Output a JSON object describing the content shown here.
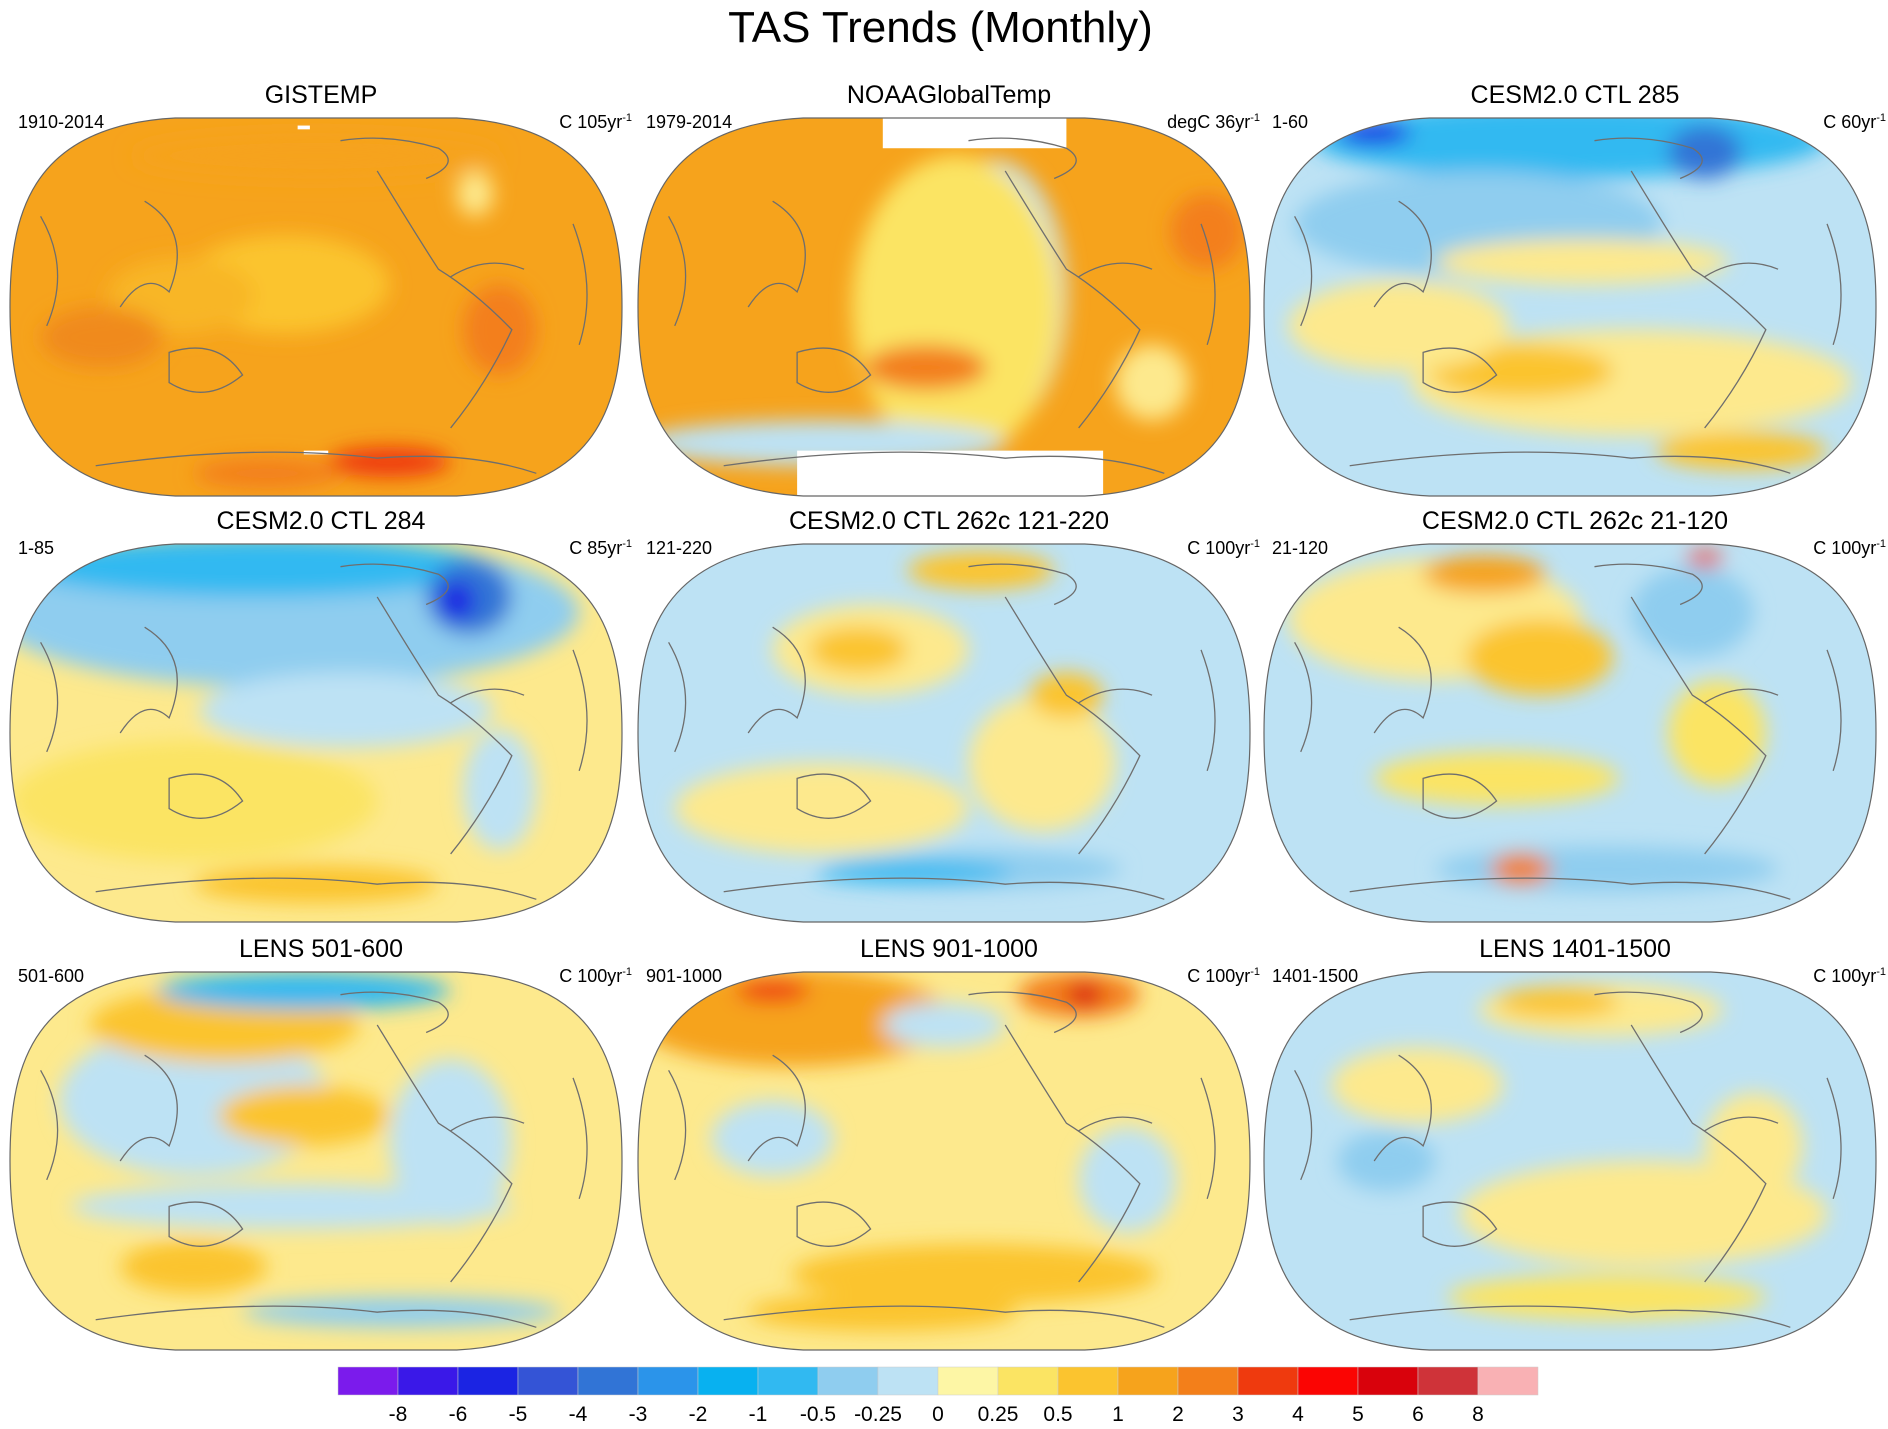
{
  "title": "TAS Trends (Monthly)",
  "panels": [
    {
      "title": "GISTEMP",
      "period": "1910-2014",
      "units_prefix": "C 105yr",
      "units_exp": "-1",
      "base": "#f6a31c",
      "blobs": [
        [
          "#fbc42f",
          0.45,
          0.44,
          0.17,
          0.13
        ],
        [
          "#f8b625",
          0.28,
          0.47,
          0.12,
          0.1
        ],
        [
          "#f37f1a",
          0.8,
          0.56,
          0.06,
          0.12
        ],
        [
          "#f6a31c",
          0.5,
          0.1,
          0.3,
          0.06
        ],
        [
          "#fde98d",
          0.76,
          0.2,
          0.03,
          0.06
        ],
        [
          "#ef3a0e",
          0.62,
          0.91,
          0.1,
          0.04
        ],
        [
          "#f37f1a",
          0.42,
          0.94,
          0.12,
          0.04
        ],
        [
          "#f08a1c",
          0.15,
          0.58,
          0.1,
          0.08
        ]
      ],
      "gaps": [
        [
          0.47,
          0.02,
          0.02,
          0.01
        ],
        [
          0.48,
          0.88,
          0.04,
          0.01
        ]
      ]
    },
    {
      "title": "NOAAGlobalTemp",
      "period": "1979-2014",
      "units_prefix": "degC 36yr",
      "units_exp": "-1",
      "base": "#f6a31c",
      "blobs": [
        [
          "#bde2f4",
          0.58,
          0.47,
          0.12,
          0.36
        ],
        [
          "#8fcdef",
          0.56,
          0.45,
          0.06,
          0.2
        ],
        [
          "#fbe463",
          0.52,
          0.5,
          0.17,
          0.4
        ],
        [
          "#bde2f4",
          0.3,
          0.86,
          0.3,
          0.06
        ],
        [
          "#fde98d",
          0.84,
          0.7,
          0.06,
          0.1
        ],
        [
          "#f37f1a",
          0.93,
          0.3,
          0.06,
          0.1
        ],
        [
          "#f37f1a",
          0.47,
          0.66,
          0.1,
          0.06
        ]
      ],
      "gaps": [
        [
          0.4,
          0.0,
          0.3,
          0.08
        ],
        [
          0.26,
          0.88,
          0.5,
          0.12
        ]
      ]
    },
    {
      "title": "CESM2.0 CTL 285",
      "period": "1-60",
      "units_prefix": "C 60yr",
      "units_exp": "-1",
      "base": "#bde2f4",
      "blobs": [
        [
          "#31b9f1",
          0.5,
          0.06,
          0.42,
          0.1
        ],
        [
          "#8fcdef",
          0.35,
          0.28,
          0.3,
          0.14
        ],
        [
          "#fde98d",
          0.52,
          0.38,
          0.24,
          0.06
        ],
        [
          "#fde98d",
          0.6,
          0.7,
          0.36,
          0.14
        ],
        [
          "#fbc42f",
          0.42,
          0.67,
          0.15,
          0.07
        ],
        [
          "#fbc42f",
          0.78,
          0.88,
          0.14,
          0.05
        ],
        [
          "#3174d6",
          0.72,
          0.09,
          0.06,
          0.07
        ],
        [
          "#1b24e3",
          0.18,
          0.04,
          0.06,
          0.03
        ],
        [
          "#fde98d",
          0.22,
          0.55,
          0.18,
          0.12
        ]
      ],
      "gaps": []
    },
    {
      "title": "CESM2.0 CTL 284",
      "period": "1-85",
      "units_prefix": "C 85yr",
      "units_exp": "-1",
      "base": "#fde98d",
      "blobs": [
        [
          "#8fcdef",
          0.45,
          0.18,
          0.48,
          0.2
        ],
        [
          "#31b9f1",
          0.4,
          0.06,
          0.38,
          0.08
        ],
        [
          "#3174d6",
          0.75,
          0.14,
          0.07,
          0.1
        ],
        [
          "#1b24e3",
          0.73,
          0.15,
          0.03,
          0.05
        ],
        [
          "#bde2f4",
          0.55,
          0.44,
          0.24,
          0.1
        ],
        [
          "#fbe463",
          0.3,
          0.68,
          0.3,
          0.16
        ],
        [
          "#fbc42f",
          0.5,
          0.9,
          0.2,
          0.05
        ],
        [
          "#bde2f4",
          0.8,
          0.65,
          0.06,
          0.16
        ]
      ],
      "gaps": []
    },
    {
      "title": "CESM2.0 CTL 262c 121-220",
      "period": "121-220",
      "units_prefix": "C 100yr",
      "units_exp": "-1",
      "base": "#bde2f4",
      "blobs": [
        [
          "#fde98d",
          0.38,
          0.28,
          0.16,
          0.12
        ],
        [
          "#fbc42f",
          0.36,
          0.28,
          0.08,
          0.06
        ],
        [
          "#fbc42f",
          0.56,
          0.07,
          0.12,
          0.05
        ],
        [
          "#fde98d",
          0.3,
          0.7,
          0.24,
          0.12
        ],
        [
          "#fde98d",
          0.66,
          0.58,
          0.12,
          0.18
        ],
        [
          "#8fcdef",
          0.55,
          0.86,
          0.24,
          0.05
        ],
        [
          "#31b9f1",
          0.45,
          0.87,
          0.16,
          0.03
        ],
        [
          "#fbc42f",
          0.7,
          0.4,
          0.06,
          0.06
        ]
      ],
      "gaps": []
    },
    {
      "title": "CESM2.0 CTL 262c 21-120",
      "period": "21-120",
      "units_prefix": "C 100yr",
      "units_exp": "-1",
      "base": "#bde2f4",
      "blobs": [
        [
          "#fde98d",
          0.28,
          0.2,
          0.24,
          0.16
        ],
        [
          "#fbc42f",
          0.45,
          0.3,
          0.12,
          0.1
        ],
        [
          "#f6a31c",
          0.36,
          0.08,
          0.1,
          0.05
        ],
        [
          "#8fcdef",
          0.7,
          0.18,
          0.1,
          0.12
        ],
        [
          "#fbe463",
          0.38,
          0.62,
          0.2,
          0.07
        ],
        [
          "#8fcdef",
          0.56,
          0.86,
          0.28,
          0.06
        ],
        [
          "#f37f1a",
          0.42,
          0.86,
          0.05,
          0.04
        ],
        [
          "#ef3a0e",
          0.72,
          0.04,
          0.03,
          0.02
        ],
        [
          "#fbe463",
          0.74,
          0.5,
          0.08,
          0.14
        ]
      ],
      "gaps": []
    },
    {
      "title": "LENS 501-600",
      "period": "501-600",
      "units_prefix": "C 100yr",
      "units_exp": "-1",
      "base": "#fde98d",
      "blobs": [
        [
          "#bde2f4",
          0.3,
          0.34,
          0.22,
          0.2
        ],
        [
          "#fbc42f",
          0.35,
          0.14,
          0.22,
          0.1
        ],
        [
          "#31b9f1",
          0.48,
          0.05,
          0.24,
          0.05
        ],
        [
          "#fbc42f",
          0.48,
          0.38,
          0.14,
          0.08
        ],
        [
          "#bde2f4",
          0.72,
          0.45,
          0.1,
          0.22
        ],
        [
          "#bde2f4",
          0.46,
          0.62,
          0.36,
          0.06
        ],
        [
          "#fbc42f",
          0.3,
          0.78,
          0.12,
          0.07
        ],
        [
          "#8fcdef",
          0.64,
          0.9,
          0.26,
          0.04
        ]
      ],
      "gaps": []
    },
    {
      "title": "LENS 901-1000",
      "period": "901-1000",
      "units_prefix": "C 100yr",
      "units_exp": "-1",
      "base": "#fde98d",
      "blobs": [
        [
          "#f6a31c",
          0.25,
          0.12,
          0.26,
          0.13
        ],
        [
          "#ef3a0e",
          0.22,
          0.05,
          0.06,
          0.03
        ],
        [
          "#f37f1a",
          0.72,
          0.06,
          0.1,
          0.06
        ],
        [
          "#d9020c",
          0.73,
          0.06,
          0.03,
          0.03
        ],
        [
          "#bde2f4",
          0.5,
          0.14,
          0.1,
          0.06
        ],
        [
          "#fbc42f",
          0.55,
          0.8,
          0.3,
          0.08
        ],
        [
          "#bde2f4",
          0.8,
          0.55,
          0.08,
          0.14
        ],
        [
          "#bde2f4",
          0.22,
          0.44,
          0.1,
          0.1
        ],
        [
          "#fbc42f",
          0.4,
          0.9,
          0.22,
          0.05
        ]
      ],
      "gaps": []
    },
    {
      "title": "LENS 1401-1500",
      "period": "1401-1500",
      "units_prefix": "C 100yr",
      "units_exp": "-1",
      "base": "#bde2f4",
      "blobs": [
        [
          "#fde98d",
          0.55,
          0.1,
          0.2,
          0.07
        ],
        [
          "#fbc42f",
          0.48,
          0.08,
          0.1,
          0.04
        ],
        [
          "#fde98d",
          0.62,
          0.64,
          0.3,
          0.14
        ],
        [
          "#fde98d",
          0.8,
          0.46,
          0.08,
          0.14
        ],
        [
          "#fbe463",
          0.56,
          0.86,
          0.26,
          0.06
        ],
        [
          "#fde98d",
          0.25,
          0.3,
          0.14,
          0.1
        ],
        [
          "#8fcdef",
          0.2,
          0.5,
          0.08,
          0.08
        ]
      ],
      "gaps": []
    }
  ],
  "chart_data": {
    "type": "heatmap",
    "title": "TAS Trends (Monthly)",
    "variable": "TAS trend",
    "panels": [
      {
        "title": "GISTEMP",
        "period": "1910-2014",
        "units": "C 105yr-1"
      },
      {
        "title": "NOAAGlobalTemp",
        "period": "1979-2014",
        "units": "degC 36yr-1"
      },
      {
        "title": "CESM2.0 CTL 285",
        "period": "1-60",
        "units": "C 60yr-1"
      },
      {
        "title": "CESM2.0 CTL 284",
        "period": "1-85",
        "units": "C 85yr-1"
      },
      {
        "title": "CESM2.0 CTL 262c 121-220",
        "period": "121-220",
        "units": "C 100yr-1"
      },
      {
        "title": "CESM2.0 CTL 262c 21-120",
        "period": "21-120",
        "units": "C 100yr-1"
      },
      {
        "title": "LENS 501-600",
        "period": "501-600",
        "units": "C 100yr-1"
      },
      {
        "title": "LENS 901-1000",
        "period": "901-1000",
        "units": "C 100yr-1"
      },
      {
        "title": "LENS 1401-1500",
        "period": "1401-1500",
        "units": "C 100yr-1"
      }
    ],
    "colorbar": {
      "levels": [
        "-8",
        "-6",
        "-5",
        "-4",
        "-3",
        "-2",
        "-1",
        "-0.5",
        "-0.25",
        "0",
        "0.25",
        "0.5",
        "1",
        "2",
        "3",
        "4",
        "5",
        "6",
        "8"
      ],
      "colors": [
        "#7b1bec",
        "#3a18e8",
        "#1b24e3",
        "#3454d6",
        "#3174d6",
        "#2b94ea",
        "#08b1f0",
        "#31b9f1",
        "#8fcdef",
        "#bde2f4",
        "#fdf6a5",
        "#fbe463",
        "#fbc42f",
        "#f6a31c",
        "#f37f1a",
        "#ef3a0e",
        "#fb0503",
        "#d9020c",
        "#cf3339",
        "#f9b1b4"
      ]
    }
  }
}
